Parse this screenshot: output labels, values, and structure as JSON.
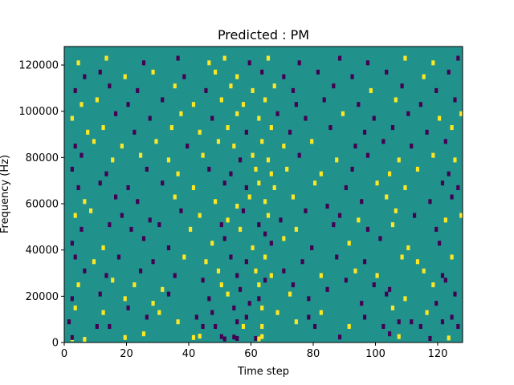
{
  "chart_data": {
    "type": "heatmap",
    "title": "Predicted : PM",
    "xlabel": "Time step",
    "ylabel": "Frequency (Hz)",
    "xlim": [
      0,
      128
    ],
    "ylim": [
      0,
      128000
    ],
    "xticks": [
      0,
      20,
      40,
      60,
      80,
      100,
      120
    ],
    "yticks": [
      0,
      20000,
      40000,
      60000,
      80000,
      100000,
      120000
    ],
    "colormap": "viridis",
    "colors": {
      "background": "#21918c",
      "high": "#fde725",
      "low": "#440154"
    },
    "cells": [
      [
        2,
        0.3,
        1
      ],
      [
        2,
        0.6,
        1
      ],
      [
        6,
        0.2,
        1
      ],
      [
        19,
        0.6,
        1
      ],
      [
        25,
        1.4,
        1
      ],
      [
        41,
        0.6,
        1
      ],
      [
        43,
        0.9,
        1
      ],
      [
        50,
        0.8,
        1
      ],
      [
        51,
        0.3,
        1
      ],
      [
        54,
        0.7,
        1
      ],
      [
        55,
        0.4,
        1
      ],
      [
        61,
        0.4,
        1
      ],
      [
        62,
        0.3,
        1
      ],
      [
        63,
        0.8,
        1
      ],
      [
        88,
        0.7,
        1
      ],
      [
        104,
        1.4,
        1
      ],
      [
        107,
        0.8,
        1
      ],
      [
        117,
        0.4,
        1
      ],
      [
        123,
        0.5,
        1
      ],
      [
        1,
        4,
        1
      ],
      [
        10,
        3,
        1
      ],
      [
        14,
        3,
        1
      ],
      [
        36,
        4,
        1
      ],
      [
        44,
        3,
        1
      ],
      [
        48,
        3,
        1
      ],
      [
        55,
        4,
        1
      ],
      [
        57,
        3,
        1
      ],
      [
        63,
        3,
        1
      ],
      [
        74,
        4,
        1
      ],
      [
        80,
        3,
        1
      ],
      [
        91,
        3,
        1
      ],
      [
        102,
        3,
        1
      ],
      [
        107,
        4,
        1
      ],
      [
        111,
        4,
        1
      ],
      [
        114,
        3,
        1
      ],
      [
        121,
        4,
        1
      ],
      [
        126,
        3,
        1
      ],
      [
        3,
        7,
        1
      ],
      [
        12,
        6,
        1
      ],
      [
        20,
        7,
        1
      ],
      [
        26,
        5,
        1
      ],
      [
        30,
        6,
        1
      ],
      [
        42,
        5,
        1
      ],
      [
        47,
        6,
        1
      ],
      [
        54,
        7,
        1
      ],
      [
        58,
        5,
        1
      ],
      [
        63,
        7,
        1
      ],
      [
        68,
        6,
        1
      ],
      [
        78,
        5,
        1
      ],
      [
        82,
        6,
        1
      ],
      [
        96,
        5,
        1
      ],
      [
        105,
        7,
        1
      ],
      [
        116,
        6,
        1
      ],
      [
        124,
        5,
        1
      ],
      [
        2,
        9,
        1
      ],
      [
        11,
        10,
        1
      ],
      [
        19,
        9,
        1
      ],
      [
        28,
        8,
        1
      ],
      [
        33,
        10,
        1
      ],
      [
        46,
        9,
        1
      ],
      [
        52,
        10,
        1
      ],
      [
        59,
        8,
        1
      ],
      [
        62,
        9,
        1
      ],
      [
        72,
        10,
        1
      ],
      [
        78,
        9,
        1
      ],
      [
        95,
        8,
        1
      ],
      [
        103,
        10,
        1
      ],
      [
        109,
        9,
        1
      ],
      [
        119,
        8,
        1
      ],
      [
        125,
        10,
        1
      ],
      [
        4,
        12,
        1
      ],
      [
        15,
        13,
        1
      ],
      [
        22,
        12,
        1
      ],
      [
        31,
        11,
        1
      ],
      [
        44,
        13,
        1
      ],
      [
        50,
        12,
        1
      ],
      [
        56,
        11,
        1
      ],
      [
        62,
        12,
        1
      ],
      [
        64,
        13,
        1
      ],
      [
        73,
        12,
        1
      ],
      [
        84,
        11,
        1
      ],
      [
        90,
        13,
        1
      ],
      [
        99,
        12,
        1
      ],
      [
        104,
        11,
        1
      ],
      [
        118,
        12,
        1
      ],
      [
        122,
        13,
        1
      ],
      [
        6,
        15,
        1
      ],
      [
        13,
        14,
        1
      ],
      [
        24,
        15,
        1
      ],
      [
        35,
        14,
        1
      ],
      [
        49,
        15,
        1
      ],
      [
        55,
        14,
        1
      ],
      [
        61,
        15,
        1
      ],
      [
        66,
        14,
        1
      ],
      [
        70,
        15,
        1
      ],
      [
        82,
        14,
        1
      ],
      [
        93,
        15,
        1
      ],
      [
        100,
        14,
        1
      ],
      [
        115,
        15,
        1
      ],
      [
        121,
        14,
        1
      ],
      [
        3,
        18,
        1
      ],
      [
        9,
        17,
        1
      ],
      [
        17,
        18,
        1
      ],
      [
        28,
        17,
        1
      ],
      [
        38,
        18,
        1
      ],
      [
        45,
        17,
        1
      ],
      [
        53,
        18,
        1
      ],
      [
        58,
        17,
        1
      ],
      [
        64,
        18,
        1
      ],
      [
        76,
        17,
        1
      ],
      [
        87,
        18,
        1
      ],
      [
        96,
        17,
        1
      ],
      [
        108,
        18,
        1
      ],
      [
        113,
        17,
        1
      ],
      [
        124,
        18,
        1
      ],
      [
        2,
        21,
        1
      ],
      [
        12,
        20,
        1
      ],
      [
        25,
        22,
        1
      ],
      [
        33,
        20,
        1
      ],
      [
        47,
        21,
        1
      ],
      [
        51,
        22,
        1
      ],
      [
        60,
        20,
        1
      ],
      [
        66,
        21,
        1
      ],
      [
        70,
        22,
        1
      ],
      [
        79,
        20,
        1
      ],
      [
        91,
        21,
        1
      ],
      [
        101,
        22,
        1
      ],
      [
        110,
        20,
        1
      ],
      [
        120,
        21,
        1
      ],
      [
        5,
        24,
        1
      ],
      [
        14,
        25,
        1
      ],
      [
        21,
        24,
        1
      ],
      [
        30,
        25,
        1
      ],
      [
        40,
        24,
        1
      ],
      [
        50,
        25,
        1
      ],
      [
        56,
        24,
        1
      ],
      [
        62,
        25,
        1
      ],
      [
        64,
        23,
        1
      ],
      [
        74,
        24,
        1
      ],
      [
        86,
        25,
        1
      ],
      [
        97,
        24,
        1
      ],
      [
        105,
        25,
        1
      ],
      [
        119,
        24,
        1
      ],
      [
        3,
        27,
        1
      ],
      [
        8,
        28,
        1
      ],
      [
        18,
        27,
        1
      ],
      [
        27,
        26,
        1
      ],
      [
        37,
        28,
        1
      ],
      [
        43,
        27,
        1
      ],
      [
        52,
        26,
        1
      ],
      [
        57,
        28,
        1
      ],
      [
        65,
        27,
        1
      ],
      [
        69,
        26,
        1
      ],
      [
        77,
        28,
        1
      ],
      [
        88,
        27,
        1
      ],
      [
        94,
        26,
        1
      ],
      [
        106,
        28,
        1
      ],
      [
        112,
        27,
        1
      ],
      [
        122,
        26,
        1
      ],
      [
        127,
        27,
        1
      ],
      [
        6,
        30,
        1
      ],
      [
        16,
        31,
        1
      ],
      [
        23,
        30,
        1
      ],
      [
        35,
        31,
        1
      ],
      [
        48,
        30,
        1
      ],
      [
        55,
        29,
        1
      ],
      [
        59,
        31,
        1
      ],
      [
        64,
        30,
        1
      ],
      [
        73,
        31,
        1
      ],
      [
        84,
        29,
        1
      ],
      [
        95,
        30,
        1
      ],
      [
        103,
        31,
        1
      ],
      [
        117,
        30,
        1
      ],
      [
        124,
        31,
        1
      ],
      [
        4,
        33,
        1
      ],
      [
        11,
        34,
        1
      ],
      [
        20,
        33,
        1
      ],
      [
        31,
        34,
        1
      ],
      [
        41,
        33,
        1
      ],
      [
        51,
        34,
        1
      ],
      [
        58,
        33,
        1
      ],
      [
        62,
        34,
        1
      ],
      [
        67,
        33,
        1
      ],
      [
        80,
        34,
        1
      ],
      [
        90,
        33,
        1
      ],
      [
        100,
        34,
        1
      ],
      [
        109,
        33,
        1
      ],
      [
        121,
        34,
        1
      ],
      [
        126,
        33,
        1
      ],
      [
        2,
        37,
        1
      ],
      [
        13,
        36,
        1
      ],
      [
        26,
        37,
        1
      ],
      [
        36,
        36,
        1
      ],
      [
        46,
        37,
        1
      ],
      [
        53,
        36,
        1
      ],
      [
        61,
        37,
        1
      ],
      [
        66,
        36,
        1
      ],
      [
        71,
        37,
        1
      ],
      [
        82,
        36,
        1
      ],
      [
        92,
        37,
        1
      ],
      [
        104,
        36,
        1
      ],
      [
        113,
        37,
        1
      ],
      [
        123,
        36,
        1
      ],
      [
        5,
        40,
        1
      ],
      [
        15,
        39,
        1
      ],
      [
        24,
        40,
        1
      ],
      [
        33,
        39,
        1
      ],
      [
        44,
        40,
        1
      ],
      [
        56,
        39,
        1
      ],
      [
        60,
        40,
        1
      ],
      [
        65,
        39,
        1
      ],
      [
        75,
        40,
        1
      ],
      [
        87,
        39,
        1
      ],
      [
        97,
        40,
        1
      ],
      [
        107,
        39,
        1
      ],
      [
        118,
        40,
        1
      ],
      [
        125,
        39,
        1
      ],
      [
        3,
        42,
        1
      ],
      [
        9,
        43,
        1
      ],
      [
        18,
        42,
        1
      ],
      [
        29,
        43,
        1
      ],
      [
        39,
        42,
        1
      ],
      [
        49,
        43,
        1
      ],
      [
        54,
        42,
        1
      ],
      [
        63,
        43,
        1
      ],
      [
        70,
        42,
        1
      ],
      [
        79,
        43,
        1
      ],
      [
        93,
        42,
        1
      ],
      [
        102,
        43,
        1
      ],
      [
        111,
        42,
        1
      ],
      [
        122,
        43,
        1
      ],
      [
        7,
        45,
        1
      ],
      [
        12,
        46,
        1
      ],
      [
        22,
        45,
        1
      ],
      [
        34,
        46,
        1
      ],
      [
        43,
        45,
        1
      ],
      [
        52,
        46,
        1
      ],
      [
        58,
        45,
        1
      ],
      [
        66,
        46,
        1
      ],
      [
        72,
        45,
        1
      ],
      [
        85,
        46,
        1
      ],
      [
        96,
        45,
        1
      ],
      [
        105,
        46,
        1
      ],
      [
        116,
        45,
        1
      ],
      [
        124,
        46,
        1
      ],
      [
        2,
        48,
        1
      ],
      [
        16,
        49,
        1
      ],
      [
        27,
        48,
        1
      ],
      [
        37,
        49,
        1
      ],
      [
        47,
        48,
        1
      ],
      [
        55,
        49,
        1
      ],
      [
        62,
        48,
        1
      ],
      [
        68,
        49,
        1
      ],
      [
        77,
        48,
        1
      ],
      [
        89,
        49,
        1
      ],
      [
        99,
        48,
        1
      ],
      [
        110,
        49,
        1
      ],
      [
        120,
        48,
        1
      ],
      [
        127,
        49,
        1
      ],
      [
        5,
        51,
        1
      ],
      [
        10,
        52,
        1
      ],
      [
        20,
        51,
        1
      ],
      [
        31,
        52,
        1
      ],
      [
        41,
        51,
        1
      ],
      [
        50,
        52,
        1
      ],
      [
        57,
        51,
        1
      ],
      [
        64,
        52,
        1
      ],
      [
        74,
        51,
        1
      ],
      [
        83,
        52,
        1
      ],
      [
        94,
        51,
        1
      ],
      [
        106,
        52,
        1
      ],
      [
        114,
        51,
        1
      ],
      [
        125,
        52,
        1
      ],
      [
        3,
        54,
        1
      ],
      [
        14,
        55,
        1
      ],
      [
        23,
        54,
        1
      ],
      [
        35,
        55,
        1
      ],
      [
        45,
        54,
        1
      ],
      [
        53,
        55,
        1
      ],
      [
        60,
        54,
        1
      ],
      [
        67,
        55,
        1
      ],
      [
        73,
        54,
        1
      ],
      [
        86,
        55,
        1
      ],
      [
        98,
        54,
        1
      ],
      [
        108,
        55,
        1
      ],
      [
        119,
        54,
        1
      ],
      [
        6,
        57,
        1
      ],
      [
        11,
        58,
        1
      ],
      [
        19,
        57,
        1
      ],
      [
        28,
        58,
        1
      ],
      [
        38,
        57,
        1
      ],
      [
        48,
        58,
        1
      ],
      [
        55,
        57,
        1
      ],
      [
        63,
        58,
        1
      ],
      [
        70,
        57,
        1
      ],
      [
        81,
        58,
        1
      ],
      [
        92,
        57,
        1
      ],
      [
        103,
        58,
        1
      ],
      [
        115,
        57,
        1
      ],
      [
        123,
        58,
        1
      ],
      [
        4,
        60,
        1
      ],
      [
        13,
        61,
        1
      ],
      [
        25,
        60,
        1
      ],
      [
        36,
        61,
        1
      ],
      [
        46,
        60,
        1
      ],
      [
        51,
        61,
        1
      ],
      [
        59,
        60,
        1
      ],
      [
        65,
        61,
        1
      ],
      [
        75,
        60,
        1
      ],
      [
        88,
        61,
        1
      ],
      [
        97,
        60,
        1
      ],
      [
        109,
        61,
        1
      ],
      [
        118,
        60,
        1
      ],
      [
        126,
        61,
        1
      ]
    ]
  }
}
